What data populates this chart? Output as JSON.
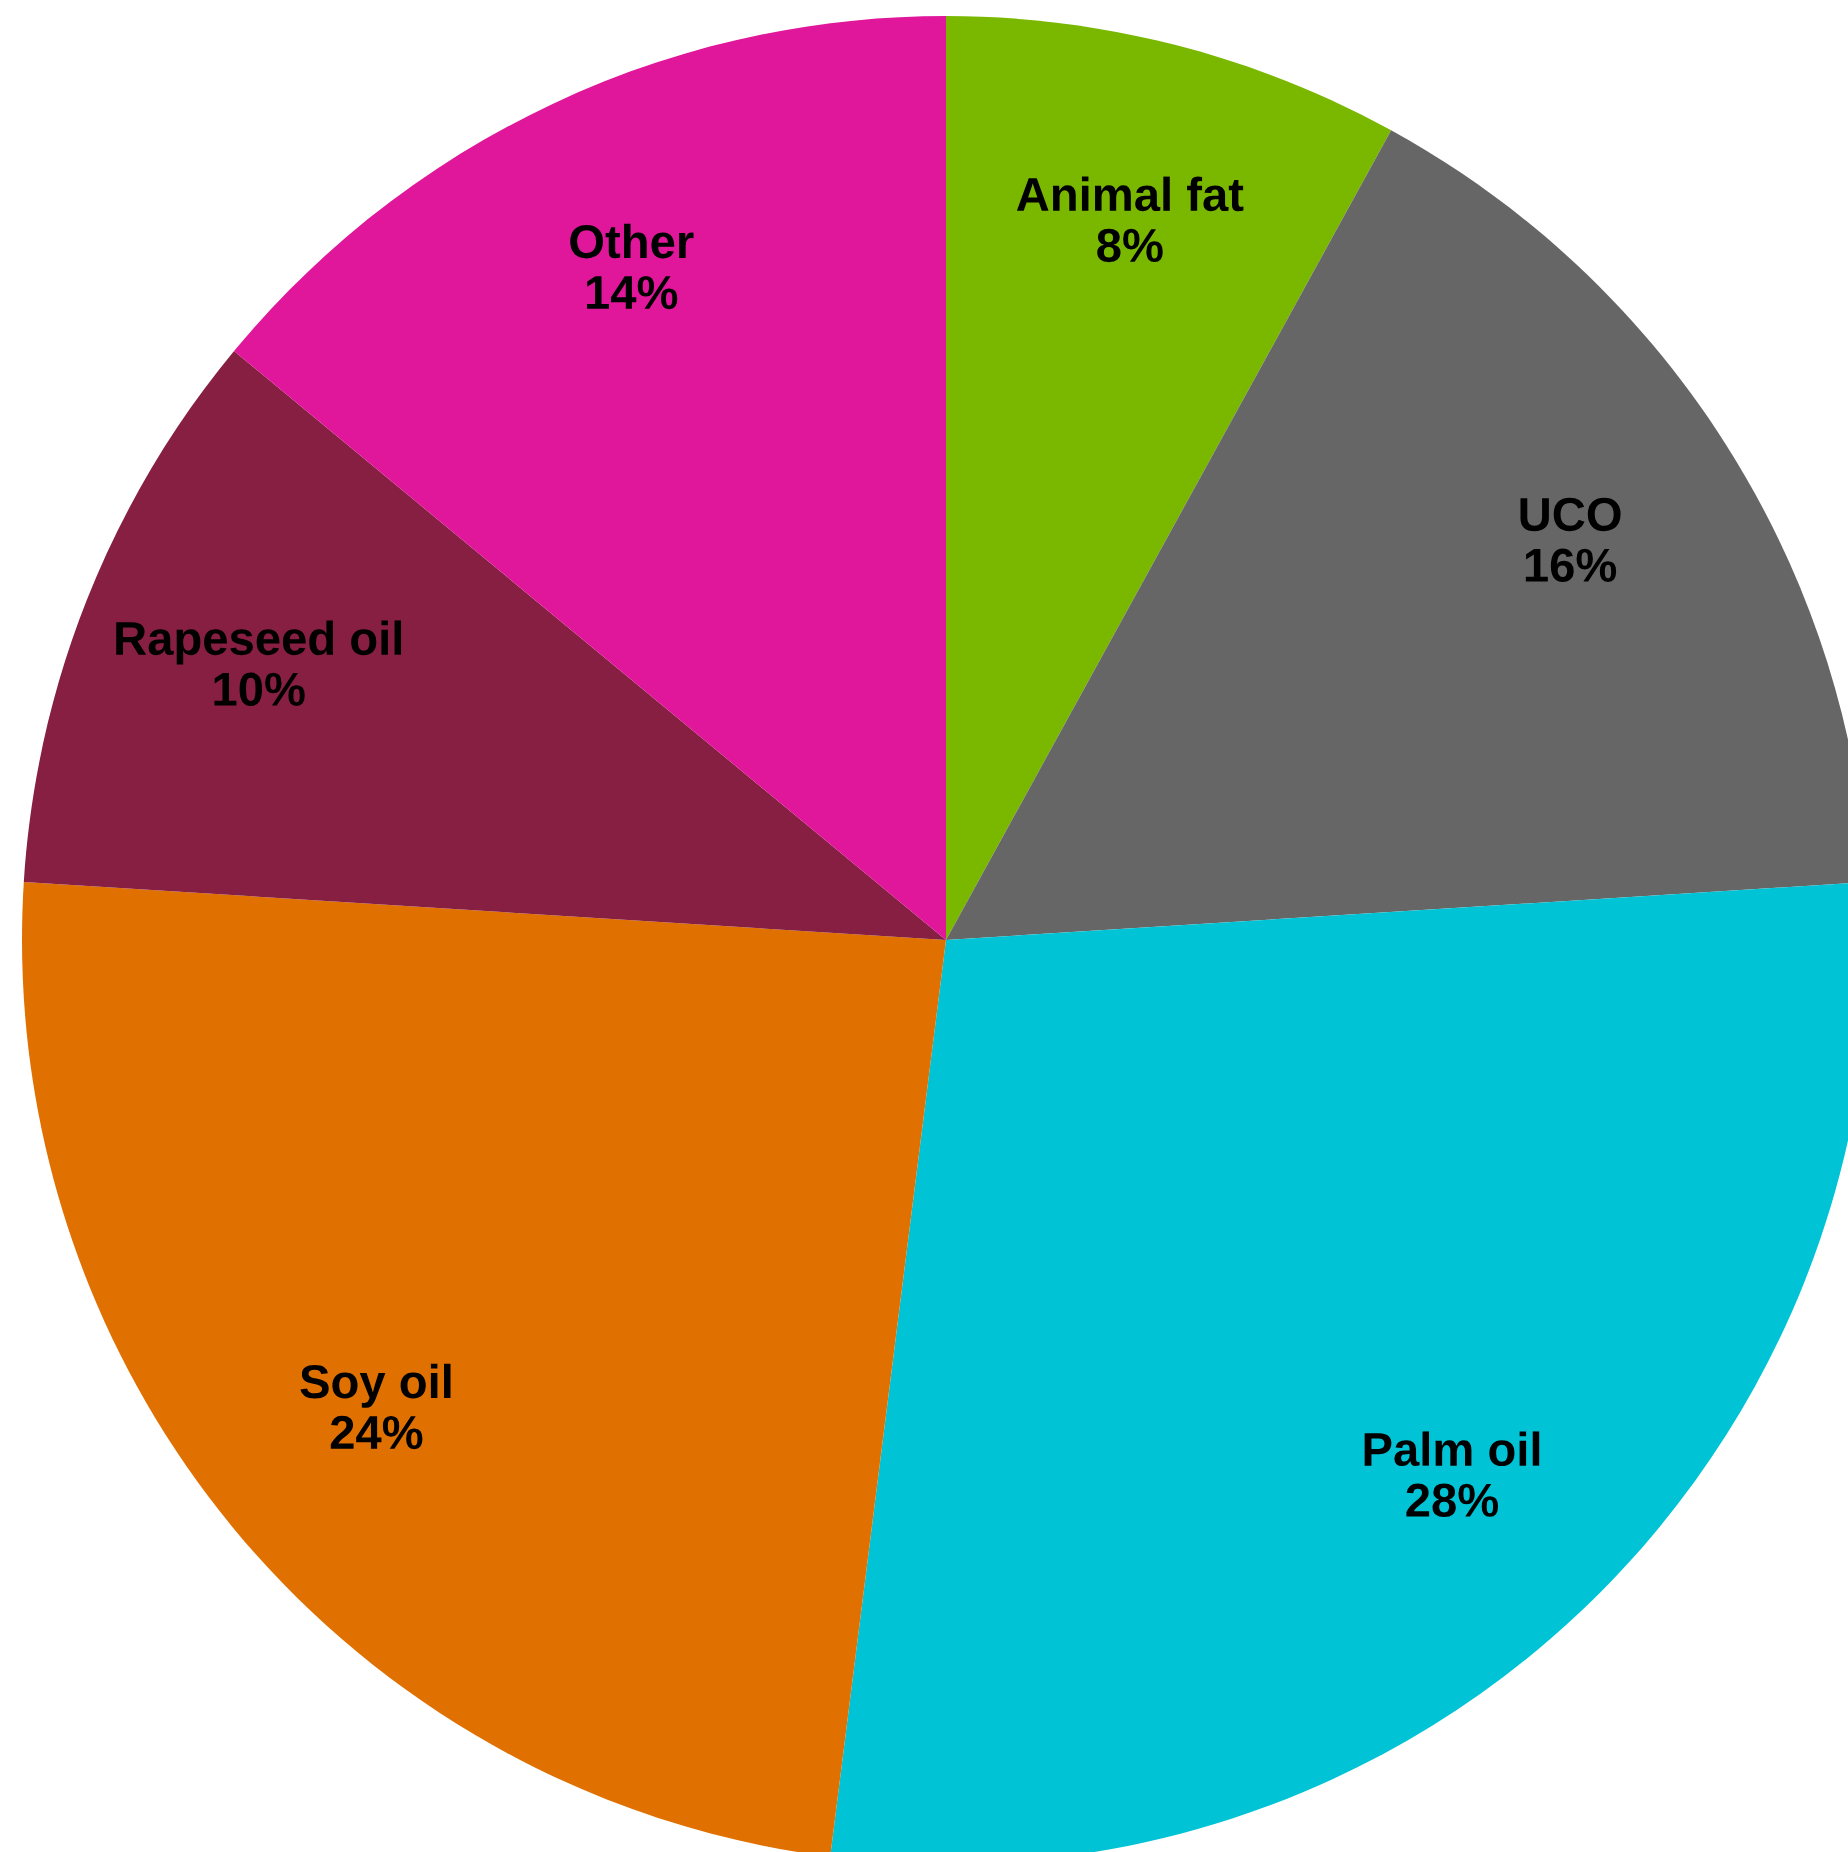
{
  "chart_data": {
    "type": "pie",
    "categories": [
      "Animal fat",
      "UCO",
      "Palm oil",
      "Soy oil",
      "Rapeseed oil",
      "Other"
    ],
    "values": [
      8,
      16,
      28,
      24,
      10,
      14
    ],
    "value_labels": [
      "8%",
      "16%",
      "28%",
      "24%",
      "10%",
      "14%"
    ],
    "colors": [
      "#7ab800",
      "#666666",
      "#00c4d6",
      "#e07000",
      "#861f41",
      "#e0179b"
    ]
  }
}
